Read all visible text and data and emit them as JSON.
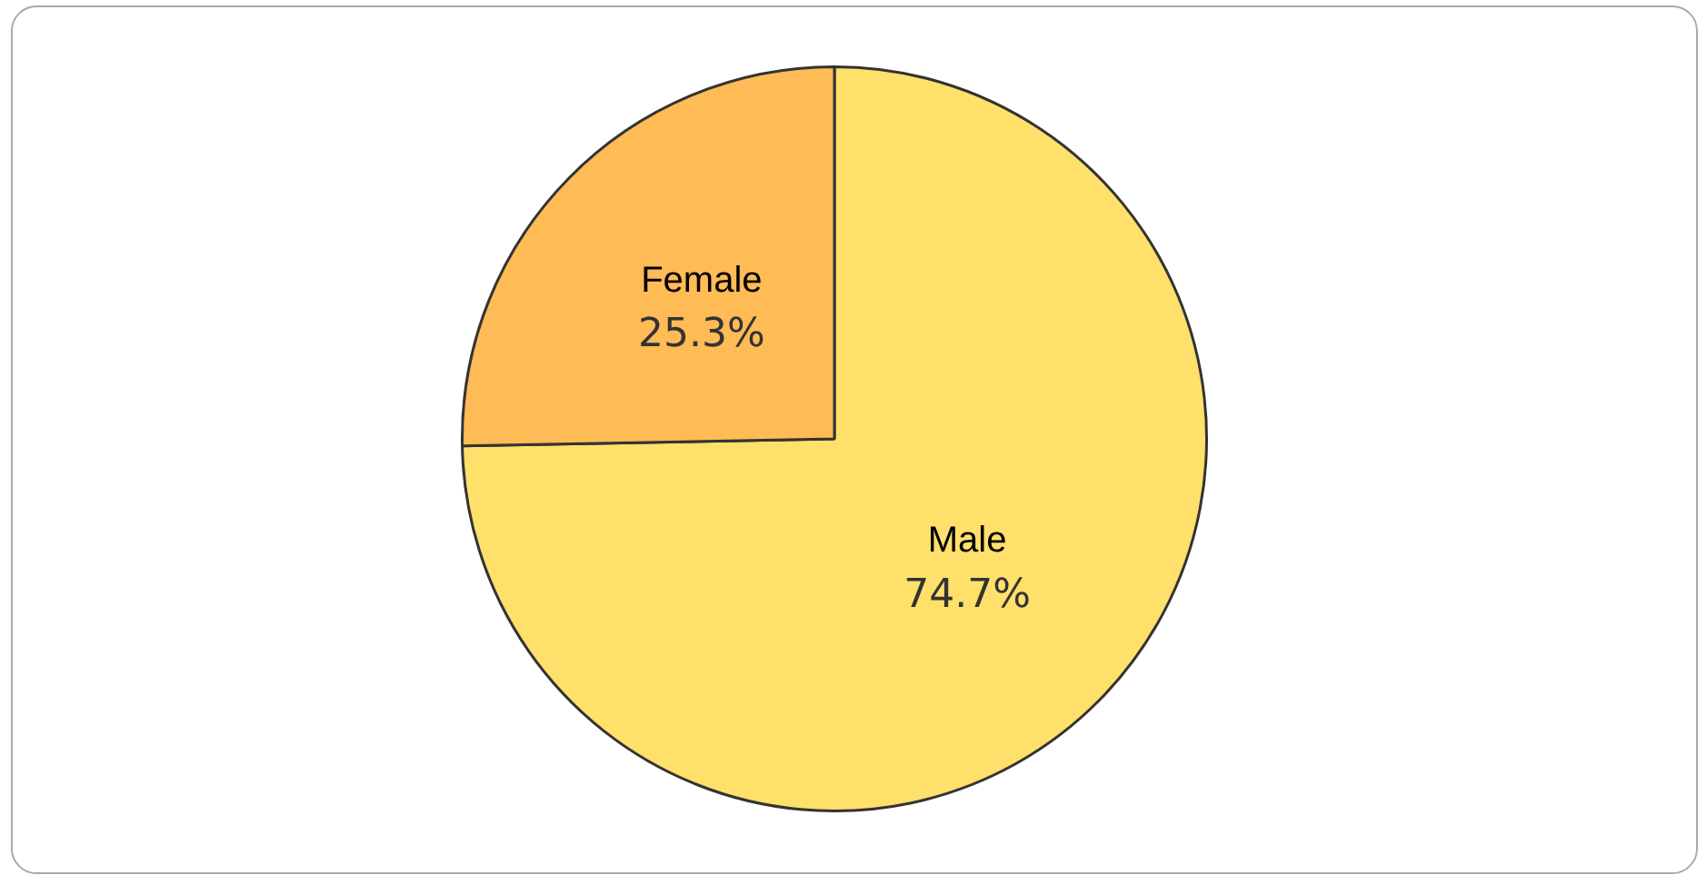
{
  "chart_data": {
    "type": "pie",
    "categories": [
      "Male",
      "Female"
    ],
    "values": [
      74.7,
      25.3
    ],
    "colors": [
      "#ffe06a",
      "#ffbb55"
    ],
    "value_labels": [
      "74.7%",
      "25.3%"
    ],
    "legend": false
  }
}
